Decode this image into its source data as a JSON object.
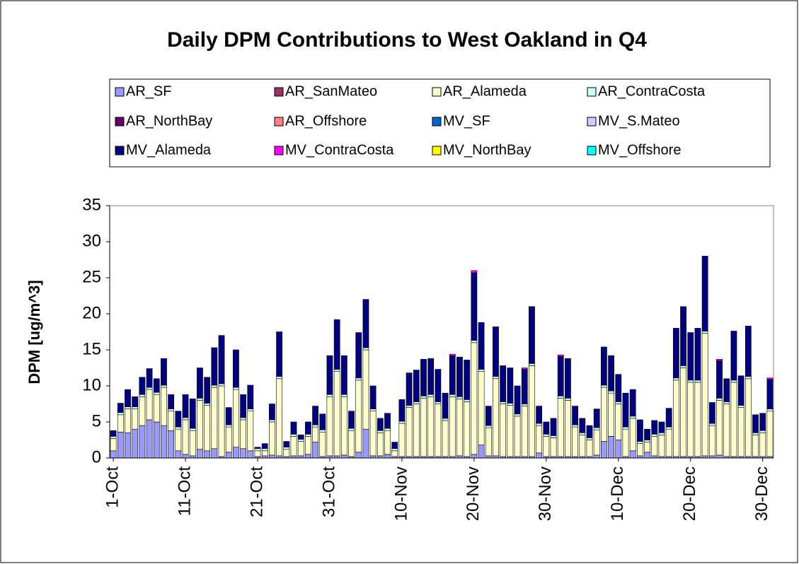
{
  "chart_data": {
    "type": "stacked_bar",
    "title": "Daily DPM Contributions to West Oakland in Q4",
    "y_label": "DPM [ug/m^3]",
    "ylim": [
      0,
      35
    ],
    "yticks": [
      0,
      5,
      10,
      15,
      20,
      25,
      30,
      35
    ],
    "legend": "top",
    "categories": [
      "1-Oct",
      null,
      null,
      null,
      null,
      null,
      null,
      null,
      null,
      null,
      "11-Oct",
      null,
      null,
      null,
      null,
      null,
      null,
      null,
      null,
      null,
      "21-Oct",
      null,
      null,
      null,
      null,
      null,
      null,
      null,
      null,
      null,
      "31-Oct",
      null,
      null,
      null,
      null,
      null,
      null,
      null,
      null,
      null,
      "10-Nov",
      null,
      null,
      null,
      null,
      null,
      null,
      null,
      null,
      null,
      "20-Nov",
      null,
      null,
      null,
      null,
      null,
      null,
      null,
      null,
      null,
      "30-Nov",
      null,
      null,
      null,
      null,
      null,
      null,
      null,
      null,
      null,
      "10-Dec",
      null,
      null,
      null,
      null,
      null,
      null,
      null,
      null,
      null,
      "20-Dec",
      null,
      null,
      null,
      null,
      null,
      null,
      null,
      null,
      null,
      "30-Dec",
      null
    ],
    "series": [
      {
        "name": "AR_SF",
        "color": "#9999ff",
        "values": [
          1.0,
          3.6,
          3.5,
          4.0,
          4.5,
          5.3,
          5.0,
          4.5,
          3.8,
          1.0,
          0.5,
          0.3,
          1.2,
          1.0,
          1.3,
          0.2,
          0.8,
          1.5,
          1.3,
          1.0,
          0.2,
          0.3,
          0.4,
          0.3,
          0.2,
          0.3,
          0.3,
          0.5,
          2.2,
          0.2,
          0.3,
          0.3,
          0.4,
          0.2,
          0.8,
          4.0,
          0.3,
          0.3,
          0.5,
          0.2,
          0.2,
          0.2,
          0.2,
          0.2,
          0.2,
          0.2,
          0.2,
          0.2,
          0.3,
          0.2,
          0.5,
          1.8,
          0.3,
          0.3,
          0.2,
          0.2,
          0.2,
          0.2,
          0.2,
          0.7,
          0.2,
          0.2,
          0.2,
          0.2,
          0.2,
          0.2,
          0.2,
          0.4,
          2.3,
          3.0,
          2.5,
          0.2,
          1.0,
          0.3,
          0.8,
          0.3,
          0.2,
          0.2,
          0.2,
          0.2,
          0.2,
          0.2,
          0.3,
          0.3,
          0.4,
          0.2,
          0.2,
          0.2,
          0.2,
          0.2,
          0.2,
          0.2
        ]
      },
      {
        "name": "AR_SanMateo",
        "color": "#993366",
        "values": [
          0,
          0,
          0,
          0,
          0,
          0,
          0,
          0,
          0,
          0,
          0,
          0,
          0,
          0,
          0,
          0,
          0,
          0,
          0,
          0,
          0,
          0,
          0,
          0,
          0,
          0,
          0,
          0,
          0,
          0,
          0,
          0,
          0,
          0,
          0,
          0,
          0,
          0,
          0,
          0,
          0,
          0,
          0,
          0,
          0,
          0,
          0,
          0,
          0,
          0,
          0,
          0,
          0,
          0,
          0,
          0,
          0,
          0,
          0,
          0,
          0,
          0,
          0,
          0,
          0,
          0,
          0,
          0,
          0,
          0,
          0,
          0,
          0,
          0,
          0,
          0,
          0,
          0,
          0,
          0,
          0,
          0,
          0,
          0,
          0,
          0,
          0,
          0,
          0,
          0,
          0,
          0
        ]
      },
      {
        "name": "AR_Alameda",
        "color": "#ffffcc",
        "values": [
          1.7,
          2.4,
          3.3,
          2.8,
          4.0,
          4.2,
          3.8,
          5.3,
          2.7,
          3.0,
          4.8,
          3.5,
          6.8,
          6.3,
          8.5,
          9.8,
          3.5,
          8.0,
          4.0,
          5.5,
          0.8,
          0.7,
          4.6,
          10.7,
          1.0,
          2.7,
          2.0,
          2.5,
          2.1,
          3.4,
          8.2,
          11.7,
          8.1,
          3.6,
          10.0,
          11.0,
          6.2,
          3.2,
          3.3,
          0.8,
          4.6,
          6.8,
          7.3,
          8.1,
          8.3,
          7.3,
          5.0,
          8.3,
          7.9,
          7.6,
          15.5,
          10.2,
          3.9,
          10.7,
          7.3,
          7.1,
          5.6,
          7.0,
          12.6,
          3.8,
          2.8,
          2.6,
          8.1,
          7.8,
          4.1,
          3.0,
          2.3,
          3.5,
          7.5,
          6.0,
          5.0,
          3.8,
          4.5,
          1.7,
          1.4,
          2.7,
          3.0,
          3.8,
          10.6,
          12.3,
          10.3,
          10.3,
          17.0,
          4.2,
          7.6,
          7.3,
          10.3,
          6.8,
          10.8,
          3.0,
          3.3,
          6.3
        ]
      },
      {
        "name": "AR_ContraCosta",
        "color": "#ccffff",
        "values": [
          0.3,
          0.3,
          0.3,
          0.3,
          0.3,
          0.3,
          0.3,
          0.3,
          0.3,
          0.3,
          0.3,
          0.3,
          0.3,
          0.3,
          0.3,
          0.3,
          0.3,
          0.3,
          0.3,
          0.3,
          0.3,
          0.3,
          0.3,
          0.3,
          0.3,
          0.3,
          0.3,
          0.3,
          0.3,
          0.3,
          0.3,
          0.3,
          0.3,
          0.3,
          0.3,
          0.3,
          0.3,
          0.3,
          0.3,
          0.3,
          0.3,
          0.3,
          0.3,
          0.3,
          0.3,
          0.3,
          0.3,
          0.3,
          0.3,
          0.3,
          0.3,
          0.3,
          0.3,
          0.3,
          0.3,
          0.3,
          0.3,
          0.3,
          0.3,
          0.3,
          0.3,
          0.3,
          0.3,
          0.3,
          0.3,
          0.3,
          0.3,
          0.3,
          0.3,
          0.3,
          0.3,
          0.3,
          0.3,
          0.3,
          0.3,
          0.3,
          0.3,
          0.3,
          0.3,
          0.3,
          0.3,
          0.3,
          0.3,
          0.3,
          0.3,
          0.3,
          0.3,
          0.3,
          0.3,
          0.3,
          0.3,
          0.3
        ]
      },
      {
        "name": "AR_NorthBay",
        "color": "#660066",
        "values": [
          0,
          0,
          0,
          0,
          0,
          0,
          0,
          0,
          0,
          0,
          0,
          0,
          0,
          0,
          0,
          0,
          0,
          0,
          0,
          0,
          0,
          0,
          0,
          0,
          0,
          0,
          0,
          0,
          0,
          0,
          0,
          0,
          0,
          0,
          0,
          0,
          0,
          0,
          0,
          0,
          0,
          0,
          0,
          0,
          0,
          0,
          0,
          0,
          0,
          0,
          0,
          0,
          0,
          0,
          0,
          0,
          0,
          0,
          0,
          0,
          0,
          0,
          0,
          0,
          0,
          0,
          0,
          0,
          0,
          0,
          0,
          0,
          0,
          0,
          0,
          0,
          0,
          0,
          0,
          0,
          0,
          0,
          0,
          0,
          0,
          0,
          0,
          0,
          0,
          0,
          0,
          0
        ]
      },
      {
        "name": "AR_Offshore",
        "color": "#ff8080",
        "values": [
          0,
          0,
          0,
          0,
          0,
          0,
          0,
          0,
          0,
          0,
          0,
          0,
          0,
          0,
          0,
          0,
          0,
          0,
          0,
          0,
          0,
          0,
          0,
          0,
          0,
          0,
          0,
          0,
          0,
          0,
          0,
          0,
          0,
          0,
          0,
          0,
          0,
          0,
          0,
          0,
          0,
          0,
          0,
          0,
          0,
          0,
          0,
          0,
          0,
          0,
          0,
          0,
          0,
          0,
          0,
          0,
          0,
          0,
          0,
          0,
          0,
          0,
          0,
          0,
          0,
          0,
          0,
          0,
          0,
          0,
          0,
          0,
          0,
          0,
          0,
          0,
          0,
          0,
          0,
          0,
          0,
          0,
          0,
          0,
          0,
          0,
          0,
          0,
          0,
          0,
          0,
          0
        ]
      },
      {
        "name": "MV_SF",
        "color": "#0066cc",
        "values": [
          0,
          0,
          0,
          0,
          0,
          0,
          0,
          0,
          0,
          0,
          0,
          0,
          0,
          0,
          0,
          0,
          0,
          0,
          0,
          0,
          0,
          0,
          0,
          0,
          0,
          0,
          0,
          0,
          0,
          0,
          0,
          0,
          0,
          0,
          0,
          0,
          0,
          0,
          0,
          0,
          0,
          0,
          0,
          0,
          0,
          0,
          0,
          0,
          0,
          0,
          0,
          0,
          0,
          0,
          0,
          0,
          0,
          0,
          0,
          0,
          0,
          0,
          0,
          0,
          0,
          0,
          0,
          0,
          0,
          0,
          0,
          0,
          0,
          0,
          0,
          0,
          0,
          0,
          0,
          0,
          0,
          0,
          0,
          0,
          0,
          0,
          0,
          0,
          0,
          0,
          0,
          0
        ]
      },
      {
        "name": "MV_S.Mateo",
        "color": "#ccccff",
        "values": [
          0,
          0,
          0,
          0,
          0,
          0,
          0,
          0,
          0,
          0,
          0,
          0,
          0,
          0,
          0,
          0,
          0,
          0,
          0,
          0,
          0,
          0,
          0,
          0,
          0,
          0,
          0,
          0,
          0,
          0,
          0,
          0,
          0,
          0,
          0,
          0,
          0,
          0,
          0,
          0,
          0,
          0,
          0,
          0,
          0,
          0,
          0,
          0,
          0,
          0,
          0,
          0,
          0,
          0,
          0,
          0,
          0,
          0,
          0,
          0,
          0,
          0,
          0,
          0,
          0,
          0,
          0,
          0,
          0,
          0,
          0,
          0,
          0,
          0,
          0,
          0,
          0,
          0,
          0,
          0,
          0,
          0,
          0,
          0,
          0,
          0,
          0,
          0,
          0,
          0,
          0,
          0
        ]
      },
      {
        "name": "MV_Alameda",
        "color": "#000080",
        "values": [
          0.8,
          1.3,
          2.4,
          1.4,
          2.4,
          2.6,
          1.9,
          3.7,
          2.0,
          2.2,
          3.2,
          4.1,
          4.2,
          3.6,
          5.2,
          6.7,
          2.4,
          5.2,
          3.2,
          3.3,
          0.2,
          0.7,
          2.2,
          6.2,
          0.8,
          1.7,
          0.6,
          1.7,
          2.6,
          2.2,
          5.4,
          6.9,
          5.4,
          2.4,
          6.3,
          6.7,
          3.2,
          1.7,
          2.1,
          0.9,
          3.0,
          4.5,
          4.4,
          5.1,
          5.0,
          4.5,
          3.5,
          5.4,
          5.5,
          5.5,
          9.4,
          6.5,
          2.7,
          6.9,
          5.0,
          4.9,
          3.9,
          4.8,
          7.9,
          2.4,
          1.7,
          2.4,
          5.5,
          5.5,
          2.6,
          2.0,
          1.7,
          2.6,
          5.3,
          4.9,
          3.8,
          4.7,
          3.7,
          3.0,
          1.5,
          1.9,
          1.5,
          2.6,
          6.9,
          8.2,
          6.6,
          7.2,
          10.4,
          2.9,
          5.2,
          3.2,
          6.8,
          4.1,
          7.0,
          2.5,
          2.4,
          4.1
        ]
      },
      {
        "name": "MV_ContraCosta",
        "color": "#ff00ff",
        "values": [
          0,
          0,
          0,
          0,
          0,
          0,
          0,
          0,
          0,
          0,
          0,
          0,
          0,
          0,
          0,
          0,
          0,
          0,
          0,
          0,
          0,
          0,
          0,
          0,
          0,
          0,
          0,
          0,
          0,
          0,
          0,
          0,
          0,
          0,
          0,
          0,
          0,
          0,
          0,
          0,
          0,
          0,
          0,
          0,
          0,
          0,
          0,
          0.2,
          0,
          0,
          0.3,
          0,
          0,
          0,
          0,
          0,
          0,
          0.2,
          0,
          0,
          0,
          0,
          0.2,
          0,
          0,
          0,
          0,
          0,
          0,
          0,
          0,
          0,
          0,
          0,
          0,
          0,
          0,
          0,
          0,
          0,
          0,
          0,
          0,
          0,
          0.2,
          0,
          0,
          0,
          0,
          0,
          0,
          0.2
        ]
      },
      {
        "name": "MV_NorthBay",
        "color": "#ffff00",
        "values": [
          0,
          0,
          0,
          0,
          0,
          0,
          0,
          0,
          0,
          0,
          0,
          0,
          0,
          0,
          0,
          0,
          0,
          0,
          0,
          0,
          0,
          0,
          0,
          0,
          0,
          0,
          0,
          0,
          0,
          0,
          0,
          0,
          0,
          0,
          0,
          0,
          0,
          0,
          0,
          0,
          0,
          0,
          0,
          0,
          0,
          0,
          0,
          0,
          0,
          0,
          0,
          0,
          0,
          0,
          0,
          0,
          0,
          0,
          0,
          0,
          0,
          0,
          0,
          0,
          0,
          0,
          0,
          0,
          0,
          0,
          0,
          0,
          0,
          0,
          0,
          0,
          0,
          0,
          0,
          0,
          0,
          0,
          0,
          0,
          0,
          0,
          0,
          0,
          0,
          0,
          0,
          0
        ]
      },
      {
        "name": "MV_Offshore",
        "color": "#00ffff",
        "values": [
          0,
          0,
          0,
          0,
          0,
          0,
          0,
          0,
          0,
          0,
          0,
          0,
          0,
          0,
          0,
          0,
          0,
          0,
          0,
          0,
          0,
          0,
          0,
          0,
          0,
          0,
          0,
          0,
          0,
          0,
          0,
          0,
          0,
          0,
          0,
          0,
          0,
          0,
          0,
          0,
          0,
          0,
          0,
          0,
          0,
          0,
          0,
          0,
          0,
          0,
          0,
          0,
          0,
          0,
          0,
          0,
          0,
          0,
          0,
          0,
          0,
          0,
          0,
          0,
          0,
          0,
          0,
          0,
          0,
          0,
          0,
          0,
          0,
          0,
          0,
          0,
          0,
          0,
          0,
          0,
          0,
          0,
          0,
          0,
          0,
          0,
          0,
          0,
          0,
          0,
          0,
          0
        ]
      }
    ]
  }
}
